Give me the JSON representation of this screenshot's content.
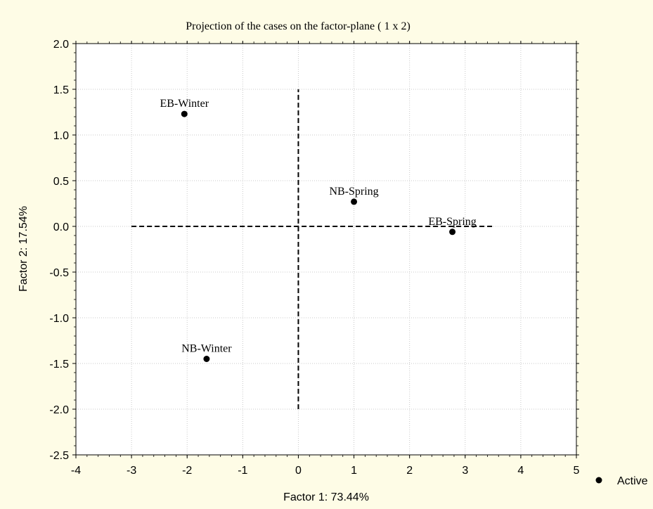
{
  "colors": {
    "background": "#FEFCE6",
    "plot_background": "#FFFFFF",
    "grid": "#C8C8C8",
    "marker": "#000000"
  },
  "chart_data": {
    "type": "scatter",
    "title": "Projection of the cases on the factor-plane (  1 x   2)",
    "xlabel": "Factor 1: 73.44%",
    "ylabel": "Factor 2: 17.54%",
    "xlim": [
      -4,
      5
    ],
    "ylim": [
      -2.5,
      2.0
    ],
    "xticks": [
      -4,
      -3,
      -2,
      -1,
      0,
      1,
      2,
      3,
      4,
      5
    ],
    "xtick_labels": [
      "-4",
      "-3",
      "-2",
      "-1",
      "0",
      "1",
      "2",
      "3",
      "4",
      "5"
    ],
    "yticks": [
      2.0,
      1.5,
      1.0,
      0.5,
      0.0,
      -0.5,
      -1.0,
      -1.5,
      -2.0,
      -2.5
    ],
    "ytick_labels": [
      "2.0",
      "1.5",
      "1.0",
      "0.5",
      "0.0",
      "-0.5",
      "-1.0",
      "-1.5",
      "-2.0",
      "-2.5"
    ],
    "grid": true,
    "legend": {
      "placement": "bottom-right",
      "entries": [
        "Active"
      ]
    },
    "points": [
      {
        "label": "EB-Winter",
        "x": -2.05,
        "y": 1.23
      },
      {
        "label": "NB-Spring",
        "x": 1.0,
        "y": 0.27
      },
      {
        "label": "EB-Spring",
        "x": 2.77,
        "y": -0.06
      },
      {
        "label": "NB-Winter",
        "x": -1.65,
        "y": -1.45
      }
    ],
    "reference_lines": [
      {
        "x": [
          -3.0,
          3.5
        ],
        "y": [
          0.0,
          0.0
        ]
      },
      {
        "x": [
          0.0,
          0.0
        ],
        "y": [
          -2.0,
          1.5
        ]
      }
    ]
  }
}
